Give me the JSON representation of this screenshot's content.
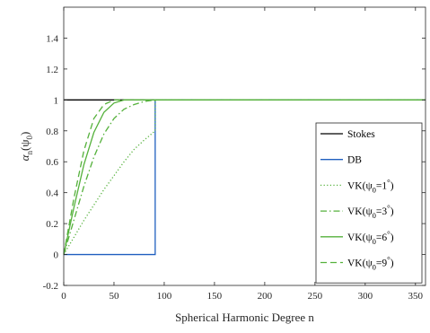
{
  "chart_data": {
    "type": "line",
    "xlabel": "Spherical Harmonic Degree n",
    "ylabel_main": "α",
    "ylabel_sub": "n",
    "ylabel_paren_open": "(ψ",
    "ylabel_paren_sub": "0",
    "ylabel_paren_close": ")",
    "xlim": [
      0,
      360
    ],
    "ylim": [
      -0.2,
      1.6
    ],
    "xticks": [
      0,
      50,
      100,
      150,
      200,
      250,
      300,
      350
    ],
    "yticks": [
      -0.2,
      0,
      0.2,
      0.4,
      0.6,
      0.8,
      1,
      1.2,
      1.4
    ],
    "ytick_labels": [
      "-0.2",
      "0",
      "0.2",
      "0.4",
      "0.6",
      "0.8",
      "1",
      "1.2",
      "1.4"
    ],
    "grid": false,
    "legend_position": "right",
    "series": [
      {
        "name": "Stokes",
        "color": "#000000",
        "dash": "solid",
        "x": [
          0,
          360
        ],
        "y": [
          1,
          1
        ]
      },
      {
        "name": "DB",
        "color": "#1f5fbf",
        "dash": "solid",
        "x": [
          0,
          91,
          91,
          360
        ],
        "y": [
          0,
          0,
          1,
          1
        ]
      },
      {
        "name": "VK(ψ0=1°)",
        "name_parts": [
          "VK(ψ",
          "0",
          "=1",
          "°",
          ")"
        ],
        "color": "#55b13c",
        "dash": "dotted",
        "x": [
          0,
          10,
          20,
          30,
          40,
          50,
          60,
          70,
          80,
          91,
          91,
          360
        ],
        "y": [
          0,
          0.11,
          0.22,
          0.32,
          0.42,
          0.51,
          0.6,
          0.68,
          0.74,
          0.8,
          1,
          1
        ]
      },
      {
        "name": "VK(ψ0=3°)",
        "name_parts": [
          "VK(ψ",
          "0",
          "=3",
          "°",
          ")"
        ],
        "color": "#55b13c",
        "dash": "dashdot",
        "x": [
          0,
          10,
          20,
          30,
          40,
          50,
          60,
          70,
          80,
          91,
          360
        ],
        "y": [
          0,
          0.22,
          0.44,
          0.63,
          0.78,
          0.88,
          0.94,
          0.97,
          0.99,
          1,
          1
        ]
      },
      {
        "name": "VK(ψ0=6°)",
        "name_parts": [
          "VK(ψ",
          "0",
          "=6",
          "°",
          ")"
        ],
        "color": "#55b13c",
        "dash": "solid",
        "x": [
          0,
          10,
          20,
          30,
          40,
          50,
          60,
          70,
          80,
          91,
          360
        ],
        "y": [
          0,
          0.3,
          0.58,
          0.79,
          0.92,
          0.98,
          1,
          1,
          1,
          1,
          1
        ]
      },
      {
        "name": "VK(ψ0=9°)",
        "name_parts": [
          "VK(ψ",
          "0",
          "=9",
          "°",
          ")"
        ],
        "color": "#55b13c",
        "dash": "dashed",
        "x": [
          0,
          10,
          20,
          30,
          40,
          50,
          60,
          70,
          91,
          360
        ],
        "y": [
          0,
          0.36,
          0.67,
          0.88,
          0.97,
          1,
          1,
          1,
          1,
          1
        ]
      }
    ]
  }
}
